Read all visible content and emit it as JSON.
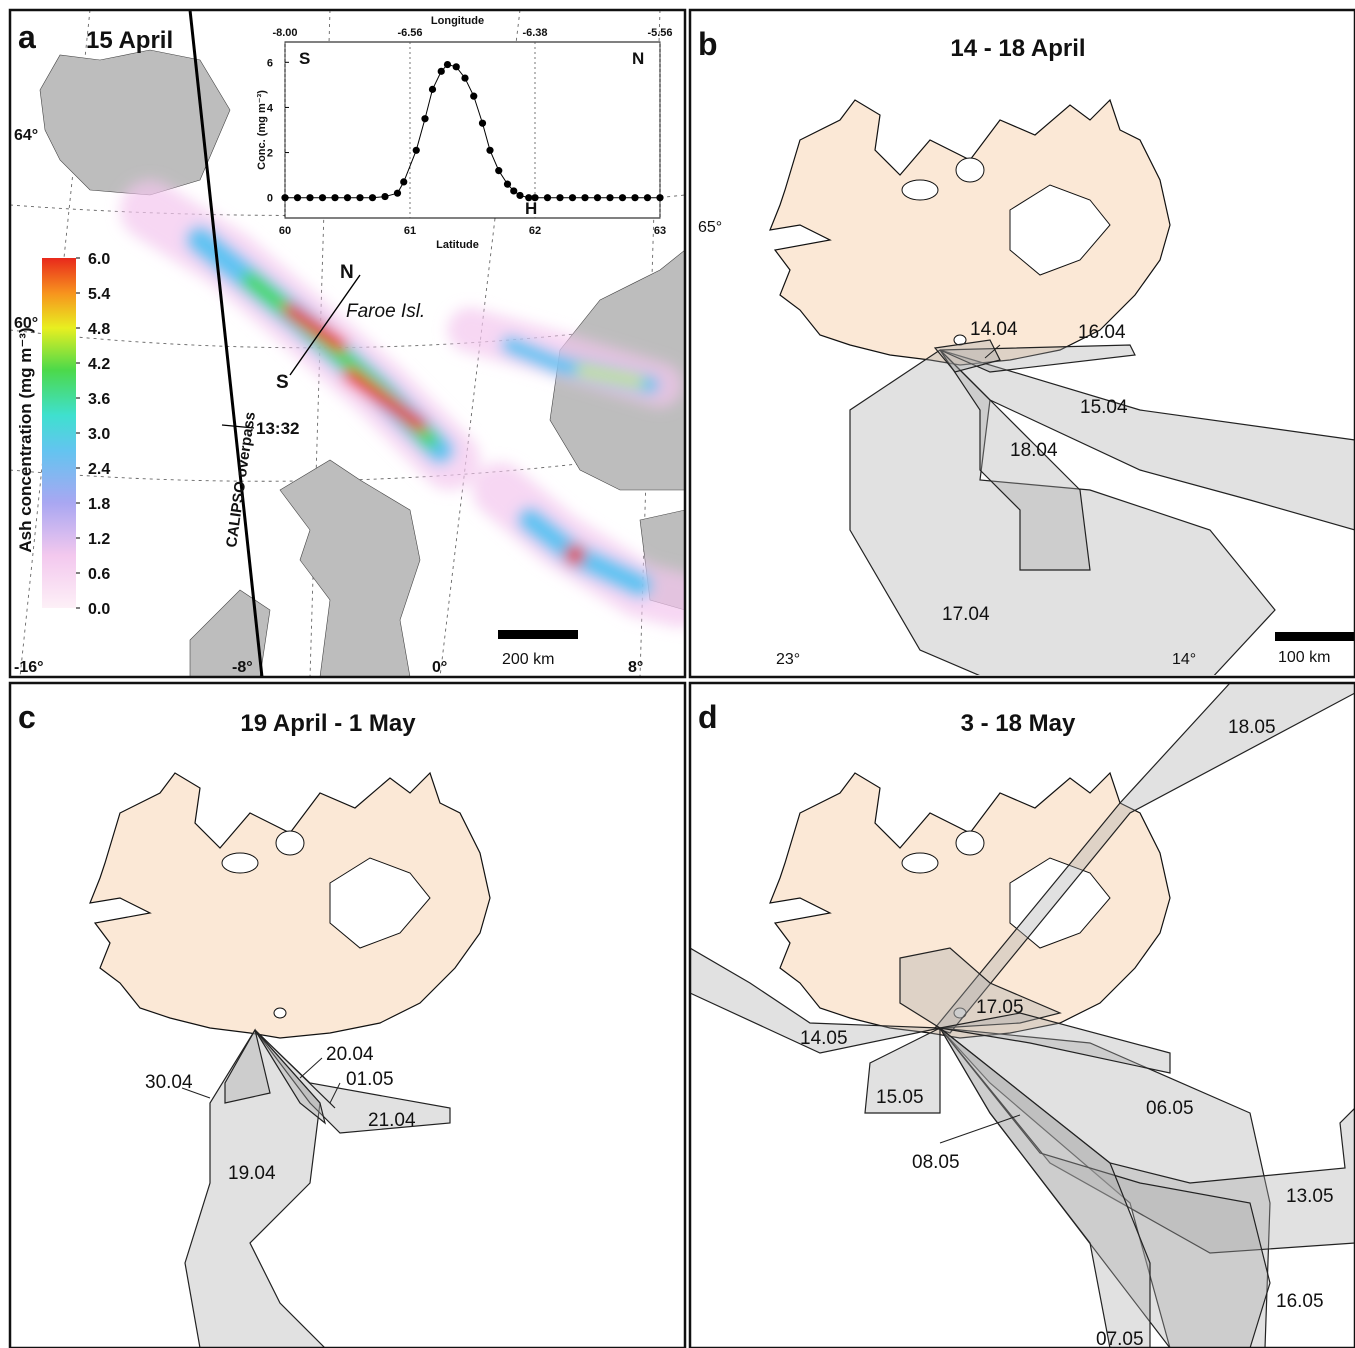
{
  "panels": {
    "a": {
      "letter": "a",
      "title": "15 April",
      "lat_labels": [
        "64°",
        "60°"
      ],
      "lon_labels": [
        "-16°",
        "-8°",
        "0°",
        "8°"
      ],
      "place_label": "Faroe Isl.",
      "transect_labels": [
        "N",
        "S"
      ],
      "overpass_time": "13:32",
      "overpass_label": "CALIPSO overpass",
      "scale_label": "200 km",
      "colorbar": {
        "title": "Ash concentration (mg m⁻³)",
        "lim": [
          0,
          6
        ],
        "ticks": [
          {
            "value": 0,
            "label": "0.0"
          },
          0.6,
          1.2,
          1.8,
          2.4,
          {
            "value": 3,
            "label": "3.0"
          },
          3.6,
          4.2,
          4.8,
          5.4,
          {
            "value": 6,
            "label": "6.0"
          }
        ]
      }
    },
    "b": {
      "letter": "b",
      "title": "14 - 18 April",
      "lat_labels": [
        "65°"
      ],
      "lon_labels": [
        "23°",
        "14°"
      ],
      "scale_label": "100 km",
      "plume_labels": [
        "14.04",
        "16.04",
        "15.04",
        "18.04",
        "17.04"
      ]
    },
    "c": {
      "letter": "c",
      "title": "19 April - 1 May",
      "plume_labels": [
        "30.04",
        "20.04",
        "01.05",
        "21.04",
        "19.04"
      ]
    },
    "d": {
      "letter": "d",
      "title": "3 - 18 May",
      "plume_labels": [
        "18.05",
        "17.05",
        "14.05",
        "15.05",
        "06.05",
        "08.05",
        "13.05",
        "16.05",
        "07.05"
      ]
    }
  },
  "chart_data": {
    "type": "line",
    "x_label": "Latitude",
    "top_label": "Longitude",
    "top_labels": [
      "-8.00",
      "-6.56",
      "-6.38",
      "-5.56"
    ],
    "y_label": "Conc. (mg m⁻³)",
    "corner_labels": [
      "S",
      "N",
      "H"
    ],
    "color": "#000000",
    "x": [
      60.0,
      60.1,
      60.2,
      60.3,
      60.4,
      60.5,
      60.6,
      60.7,
      60.8,
      60.9,
      60.95,
      61.05,
      61.12,
      61.18,
      61.25,
      61.3,
      61.37,
      61.44,
      61.51,
      61.58,
      61.64,
      61.71,
      61.78,
      61.83,
      61.88,
      61.95,
      62.0,
      62.1,
      62.2,
      62.3,
      62.4,
      62.5,
      62.6,
      62.7,
      62.8,
      62.9,
      63.0
    ],
    "values": [
      0,
      0,
      0,
      0,
      0,
      0,
      0,
      0,
      0.05,
      0.2,
      0.7,
      2.1,
      3.5,
      4.8,
      5.6,
      5.9,
      5.8,
      5.3,
      4.5,
      3.3,
      2.1,
      1.2,
      0.6,
      0.3,
      0.1,
      0,
      0,
      0,
      0,
      0,
      0,
      0,
      0,
      0,
      0,
      0,
      0
    ],
    "xlim": [
      60,
      63
    ],
    "ylim": [
      -0.9,
      6.9
    ],
    "xticks": [
      60,
      61,
      62,
      63
    ],
    "yticks": [
      0,
      2,
      4,
      6
    ],
    "grid": true
  }
}
